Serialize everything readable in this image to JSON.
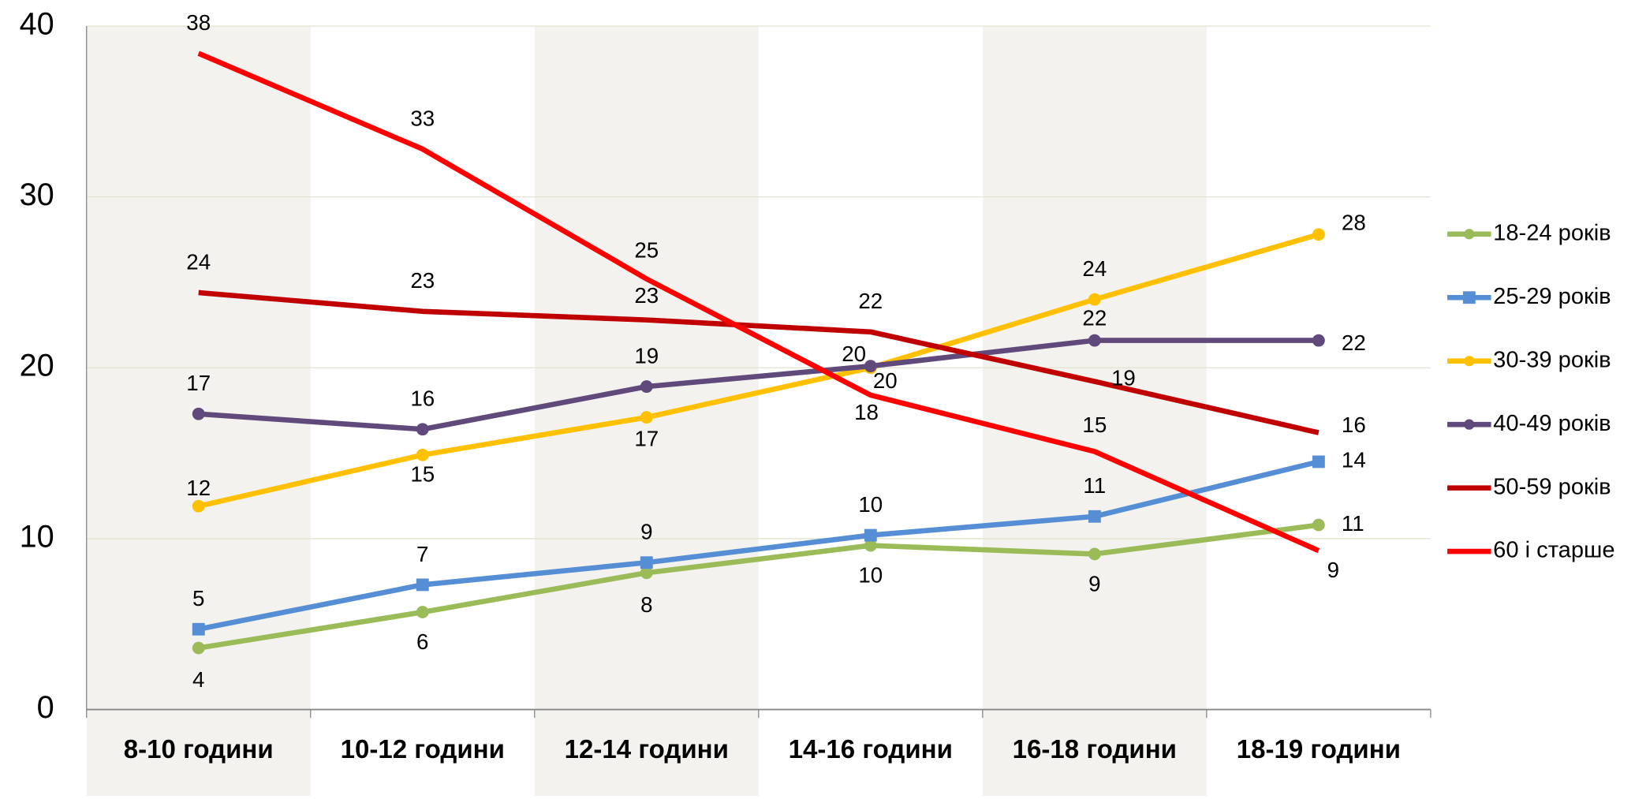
{
  "chart_data": {
    "type": "line",
    "categories": [
      "8-10 години",
      "10-12 години",
      "12-14 години",
      "14-16 години",
      "16-18 години",
      "18-19 години"
    ],
    "ylim": [
      0,
      40
    ],
    "yticks": [
      0,
      10,
      20,
      30,
      40
    ],
    "grid": true,
    "legend": "right",
    "series": [
      {
        "name": "18-24 років",
        "color": "#9bbb59",
        "marker": "circle",
        "values": [
          3.6,
          5.7,
          8.0,
          9.6,
          9.1,
          10.8
        ],
        "value_labels": [
          "4",
          "6",
          "8",
          "10",
          "9",
          "11"
        ]
      },
      {
        "name": "25-29 років",
        "color": "#558ed5",
        "marker": "square",
        "values": [
          4.7,
          7.3,
          8.6,
          10.2,
          11.3,
          14.5
        ],
        "value_labels": [
          "5",
          "7",
          "9",
          "10",
          "11",
          "14"
        ]
      },
      {
        "name": "30-39 років",
        "color": "#ffc000",
        "marker": "circle",
        "values": [
          11.9,
          14.9,
          17.1,
          20.0,
          24.0,
          27.8
        ],
        "value_labels": [
          "12",
          "15",
          "17",
          "20",
          "24",
          "28"
        ]
      },
      {
        "name": "40-49 років",
        "color": "#604a7b",
        "marker": "circle",
        "values": [
          17.3,
          16.4,
          18.9,
          20.1,
          21.6,
          21.6
        ],
        "value_labels": [
          "17",
          "16",
          "19",
          "20",
          "22",
          "22"
        ]
      },
      {
        "name": "50-59 років",
        "color": "#c00000",
        "marker": "none",
        "values": [
          24.4,
          23.3,
          22.8,
          22.1,
          19.2,
          16.2
        ],
        "value_labels": [
          "24",
          "23",
          "23",
          "22",
          "19",
          "16"
        ]
      },
      {
        "name": "60 і старше",
        "color": "#ff0000",
        "marker": "none",
        "values": [
          38.4,
          32.8,
          25.2,
          18.4,
          15.1,
          9.3
        ],
        "value_labels": [
          "38",
          "33",
          "25",
          "18",
          "15",
          "9"
        ]
      }
    ]
  }
}
